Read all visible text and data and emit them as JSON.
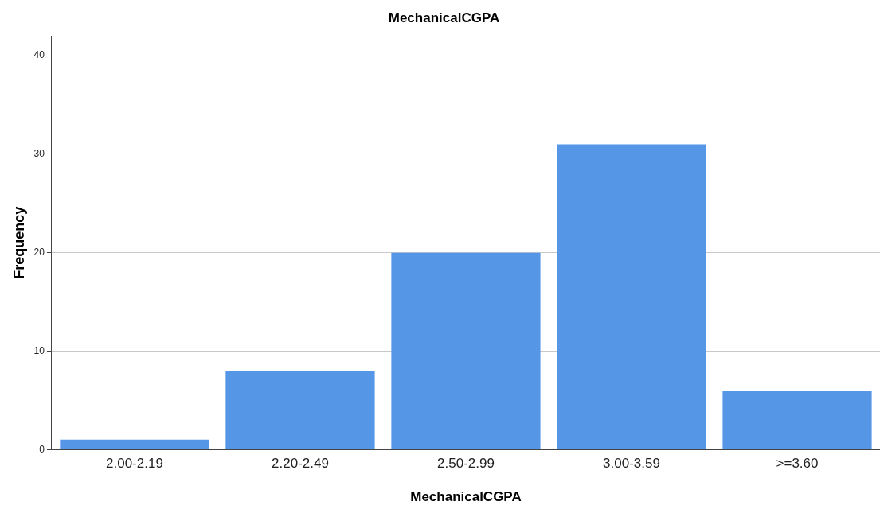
{
  "chart_data": {
    "type": "bar",
    "title": "MechanicalCGPA",
    "xlabel": "MechanicalCGPA",
    "ylabel": "Frequency",
    "categories": [
      "2.00-2.19",
      "2.20-2.49",
      "2.50-2.99",
      "3.00-3.59",
      ">=3.60"
    ],
    "values": [
      1,
      8,
      20,
      31,
      6
    ],
    "color": "#5596e6",
    "ylim": [
      0,
      42
    ],
    "yticks": [
      0,
      10,
      20,
      30,
      40
    ],
    "grid": "y",
    "legend": false
  }
}
